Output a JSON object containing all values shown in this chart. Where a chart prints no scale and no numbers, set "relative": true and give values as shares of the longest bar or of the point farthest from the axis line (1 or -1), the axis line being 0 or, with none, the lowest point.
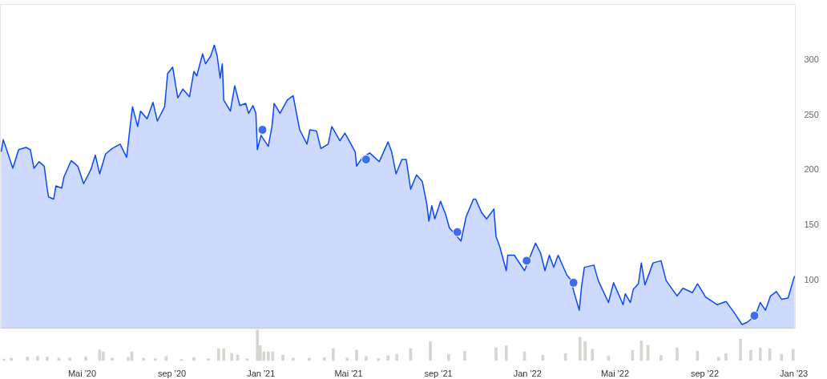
{
  "chart_data": [
    {
      "type": "area",
      "xlim": [
        "2020-01-10",
        "2023-01-03"
      ],
      "ylim": [
        55,
        350
      ],
      "yticks": [
        100,
        150,
        200,
        250,
        300
      ],
      "grid": false,
      "tick_labels": "y",
      "series": [
        {
          "type": "area",
          "color": "#0a47f5",
          "x": [
            "2020-01-11",
            "2020-01-14",
            "2020-01-27",
            "2020-02-04",
            "2020-02-14",
            "2020-02-20",
            "2020-02-25",
            "2020-03-03",
            "2020-03-10",
            "2020-03-14",
            "2020-03-16",
            "2020-03-23",
            "2020-03-26",
            "2020-04-03",
            "2020-04-06",
            "2020-04-16",
            "2020-04-25",
            "2020-05-03",
            "2020-05-13",
            "2020-05-19",
            "2020-05-25",
            "2020-06-02",
            "2020-06-11",
            "2020-06-22",
            "2020-07-01",
            "2020-07-05",
            "2020-07-09",
            "2020-07-16",
            "2020-07-20",
            "2020-07-29",
            "2020-08-06",
            "2020-08-12",
            "2020-08-22",
            "2020-08-26",
            "2020-09-02",
            "2020-09-09",
            "2020-09-16",
            "2020-09-25",
            "2020-10-01",
            "2020-10-05",
            "2020-10-13",
            "2020-10-17",
            "2020-10-24",
            "2020-10-29",
            "2020-11-02",
            "2020-11-06",
            "2020-11-09",
            "2020-11-11",
            "2020-11-20",
            "2020-11-26",
            "2020-12-03",
            "2020-12-11",
            "2020-12-15",
            "2020-12-21",
            "2020-12-25",
            "2020-12-27",
            "2021-01-01",
            "2021-01-11",
            "2021-01-16",
            "2021-01-19",
            "2021-01-27",
            "2021-02-06",
            "2021-02-14",
            "2021-02-23",
            "2021-03-05",
            "2021-03-09",
            "2021-03-18",
            "2021-03-24",
            "2021-04-03",
            "2021-04-08",
            "2021-04-19",
            "2021-04-26",
            "2021-05-10",
            "2021-05-12",
            "2021-05-20",
            "2021-05-30",
            "2021-06-12",
            "2021-06-24",
            "2021-06-29",
            "2021-07-05",
            "2021-07-13",
            "2021-07-19",
            "2021-07-25",
            "2021-08-02",
            "2021-08-10",
            "2021-08-16",
            "2021-08-19",
            "2021-08-23",
            "2021-08-27",
            "2021-09-04",
            "2021-09-11",
            "2021-09-16",
            "2021-10-02",
            "2021-10-09",
            "2021-10-19",
            "2021-10-22",
            "2021-10-30",
            "2021-11-06",
            "2021-11-16",
            "2021-11-19",
            "2021-11-24",
            "2021-12-03",
            "2021-12-05",
            "2021-12-14",
            "2021-12-28",
            "2022-01-12",
            "2022-01-19",
            "2022-01-25",
            "2022-01-31",
            "2022-02-06",
            "2022-02-12",
            "2022-02-24",
            "2022-03-01",
            "2022-03-06",
            "2022-03-13",
            "2022-03-16",
            "2022-03-20",
            "2022-04-02",
            "2022-04-08",
            "2022-04-22",
            "2022-04-29",
            "2022-05-12",
            "2022-05-15",
            "2022-05-22",
            "2022-05-26",
            "2022-06-02",
            "2022-06-06",
            "2022-06-11",
            "2022-06-22",
            "2022-07-03",
            "2022-07-10",
            "2022-07-25",
            "2022-08-02",
            "2022-08-15",
            "2022-08-22",
            "2022-09-02",
            "2022-09-18",
            "2022-09-30",
            "2022-10-11",
            "2022-10-22",
            "2022-10-29",
            "2022-11-09",
            "2022-11-16",
            "2022-11-23",
            "2022-11-30",
            "2022-12-08",
            "2022-12-15",
            "2022-12-24",
            "2022-12-31",
            "2023-01-02"
          ],
          "values": [
            216,
            227,
            201,
            218,
            220,
            218,
            201,
            207,
            203,
            183,
            175,
            173,
            185,
            183,
            193,
            208,
            203,
            187,
            200,
            213,
            196,
            214,
            219,
            223,
            211,
            235,
            257,
            239,
            253,
            246,
            261,
            244,
            257,
            287,
            293,
            265,
            273,
            266,
            289,
            285,
            305,
            296,
            303,
            313,
            303,
            283,
            296,
            263,
            253,
            276,
            258,
            260,
            251,
            258,
            251,
            218,
            231,
            221,
            239,
            260,
            251,
            263,
            267,
            236,
            223,
            236,
            235,
            219,
            223,
            239,
            226,
            233,
            216,
            203,
            211,
            215,
            207,
            225,
            216,
            196,
            209,
            209,
            182,
            195,
            189,
            169,
            153,
            167,
            155,
            171,
            159,
            147,
            135,
            157,
            173,
            173,
            161,
            155,
            164,
            139,
            130,
            108,
            122,
            122,
            108,
            133,
            124,
            108,
            122,
            111,
            122,
            104,
            100,
            88,
            72,
            93,
            111,
            113,
            99,
            79,
            97,
            77,
            87,
            79,
            91,
            96,
            115,
            95,
            115,
            117,
            99,
            85,
            92,
            88,
            96,
            84,
            77,
            80,
            70,
            59,
            61,
            67,
            79,
            72,
            85,
            89,
            82,
            83,
            99,
            103
          ]
        },
        {
          "type": "scatter",
          "marker": "circle",
          "color": "#3d6ef2",
          "x": [
            "2021-01-03",
            "2021-05-25",
            "2021-09-27",
            "2021-12-31",
            "2022-03-05",
            "2022-11-08"
          ],
          "values": [
            236,
            209,
            143,
            117,
            97,
            67
          ]
        }
      ]
    },
    {
      "type": "bar",
      "relative": true,
      "color": "#d6d6d0",
      "xlim": [
        "2020-01-10",
        "2023-01-03"
      ],
      "tick_labels": "x",
      "xticks": [
        {
          "value": "2020-05-01",
          "label": "Mai '20"
        },
        {
          "value": "2020-09-01",
          "label": "sep '20"
        },
        {
          "value": "2021-01-01",
          "label": "Jan '21"
        },
        {
          "value": "2021-05-01",
          "label": "Mai '21"
        },
        {
          "value": "2021-09-01",
          "label": "sep '21"
        },
        {
          "value": "2022-01-01",
          "label": "Jan '22"
        },
        {
          "value": "2022-05-01",
          "label": "Mai '22"
        },
        {
          "value": "2022-09-01",
          "label": "sep '22"
        },
        {
          "value": "2023-01-01",
          "label": "Jan '23"
        }
      ],
      "x": [
        "2020-01-15",
        "2020-01-25",
        "2020-02-16",
        "2020-03-01",
        "2020-03-14",
        "2020-03-30",
        "2020-04-14",
        "2020-05-06",
        "2020-05-25",
        "2020-05-30",
        "2020-06-11",
        "2020-07-03",
        "2020-07-08",
        "2020-07-24",
        "2020-08-09",
        "2020-08-24",
        "2020-09-14",
        "2020-10-01",
        "2020-10-21",
        "2020-11-04",
        "2020-11-11",
        "2020-11-22",
        "2020-11-30",
        "2020-12-13",
        "2020-12-27",
        "2020-12-31",
        "2021-01-05",
        "2021-01-11",
        "2021-01-17",
        "2021-01-31",
        "2021-02-14",
        "2021-03-08",
        "2021-03-29",
        "2021-04-10",
        "2021-04-29",
        "2021-05-12",
        "2021-05-25",
        "2021-06-11",
        "2021-06-24",
        "2021-07-06",
        "2021-07-25",
        "2021-08-21",
        "2021-09-15",
        "2021-10-07",
        "2021-11-19",
        "2021-12-03",
        "2021-12-28",
        "2022-01-22",
        "2022-02-22",
        "2022-03-14",
        "2022-03-21",
        "2022-03-31",
        "2022-04-22",
        "2022-05-25",
        "2022-06-06",
        "2022-06-15",
        "2022-07-03",
        "2022-07-25",
        "2022-08-22",
        "2022-09-20",
        "2022-09-30",
        "2022-10-20",
        "2022-11-03",
        "2022-11-16",
        "2022-11-29",
        "2022-12-15",
        "2022-12-31"
      ],
      "values": [
        0.07,
        0.1,
        0.14,
        0.16,
        0.14,
        0.1,
        0.1,
        0.14,
        0.36,
        0.3,
        0.1,
        0.12,
        0.3,
        0.1,
        0.08,
        0.15,
        0.06,
        0.12,
        0.08,
        0.4,
        0.4,
        0.25,
        0.2,
        0.08,
        1.0,
        0.5,
        0.3,
        0.3,
        0.3,
        0.2,
        0.1,
        0.1,
        0.12,
        0.4,
        0.1,
        0.36,
        0.15,
        0.08,
        0.18,
        0.22,
        0.4,
        0.62,
        0.22,
        0.32,
        0.43,
        0.49,
        0.3,
        0.19,
        0.24,
        0.76,
        0.62,
        0.38,
        0.16,
        0.35,
        0.65,
        0.51,
        0.19,
        0.43,
        0.32,
        0.13,
        0.24,
        0.7,
        0.35,
        0.43,
        0.4,
        0.22,
        0.38
      ]
    }
  ]
}
